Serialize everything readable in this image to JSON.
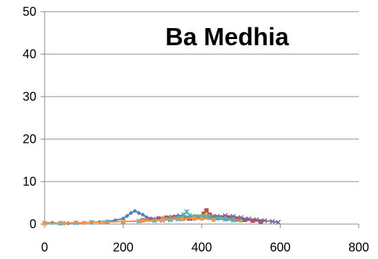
{
  "chart_data": {
    "type": "line",
    "title": "Ba Medhia",
    "xlabel": "",
    "ylabel": "",
    "xlim": [
      0,
      800
    ],
    "ylim": [
      0,
      50
    ],
    "x_ticks": [
      "0",
      "200",
      "400",
      "600",
      "800"
    ],
    "y_ticks": [
      "0",
      "10",
      "20",
      "30",
      "40",
      "50"
    ],
    "grid": true,
    "legend": "none",
    "series": [
      {
        "color": "#4f81bd",
        "marker": "diamond",
        "x": [
          0,
          20,
          40,
          60,
          80,
          100,
          120,
          140,
          160,
          180,
          200,
          210,
          220,
          230,
          240,
          250,
          260,
          270,
          280,
          290,
          300,
          310,
          320,
          330,
          340,
          350,
          360,
          370,
          380
        ],
        "y": [
          0.3,
          0.3,
          0.2,
          0.2,
          0.3,
          0.3,
          0.4,
          0.5,
          0.6,
          0.9,
          1.3,
          1.9,
          2.6,
          3.1,
          2.6,
          2.2,
          1.6,
          1.3,
          1.2,
          1.3,
          1.4,
          1.5,
          1.7,
          1.8,
          2.0,
          1.9,
          1.7,
          1.4,
          1.2
        ]
      },
      {
        "color": "#c0504d",
        "marker": "square",
        "x": [
          250,
          270,
          290,
          310,
          330,
          350,
          370,
          390,
          405,
          412,
          420,
          430,
          450,
          470,
          490,
          510,
          530,
          550
        ],
        "y": [
          0.9,
          1.1,
          1.3,
          1.5,
          1.6,
          1.4,
          1.3,
          1.6,
          2.4,
          3.2,
          2.2,
          1.7,
          1.5,
          1.3,
          1.1,
          1.0,
          0.8,
          0.6
        ]
      },
      {
        "color": "#9bbb59",
        "marker": "triangle",
        "x": [
          300,
          320,
          340,
          360,
          380,
          400,
          410,
          420,
          440,
          460,
          480,
          500
        ],
        "y": [
          1.3,
          1.5,
          1.6,
          1.8,
          2.0,
          2.1,
          2.3,
          2.0,
          1.7,
          1.3,
          1.1,
          0.9
        ]
      },
      {
        "color": "#8064a2",
        "marker": "x",
        "x": [
          300,
          320,
          340,
          360,
          380,
          400,
          420,
          440,
          460,
          480,
          500,
          520,
          540,
          560,
          580,
          595
        ],
        "y": [
          0.9,
          1.1,
          1.2,
          1.3,
          1.4,
          1.5,
          1.6,
          1.8,
          2.0,
          1.8,
          1.5,
          1.2,
          1.0,
          0.8,
          0.6,
          0.4
        ]
      },
      {
        "color": "#4bacc6",
        "marker": "star",
        "x": [
          0,
          40,
          80,
          120,
          160,
          200,
          240,
          280,
          320,
          340,
          355,
          362,
          370,
          385,
          400,
          420,
          440,
          460,
          480
        ],
        "y": [
          0.2,
          0.2,
          0.3,
          0.4,
          0.5,
          0.6,
          0.7,
          0.8,
          1.0,
          1.2,
          2.2,
          2.9,
          2.0,
          1.8,
          1.7,
          1.5,
          1.3,
          1.1,
          0.9
        ]
      },
      {
        "color": "#f79646",
        "marker": "circle",
        "x": [
          0,
          50,
          100,
          150,
          200,
          250,
          300,
          350,
          380,
          400,
          430
        ],
        "y": [
          0.2,
          0.2,
          0.3,
          0.4,
          0.6,
          0.8,
          1.0,
          1.2,
          1.4,
          1.3,
          1.0
        ]
      }
    ]
  }
}
